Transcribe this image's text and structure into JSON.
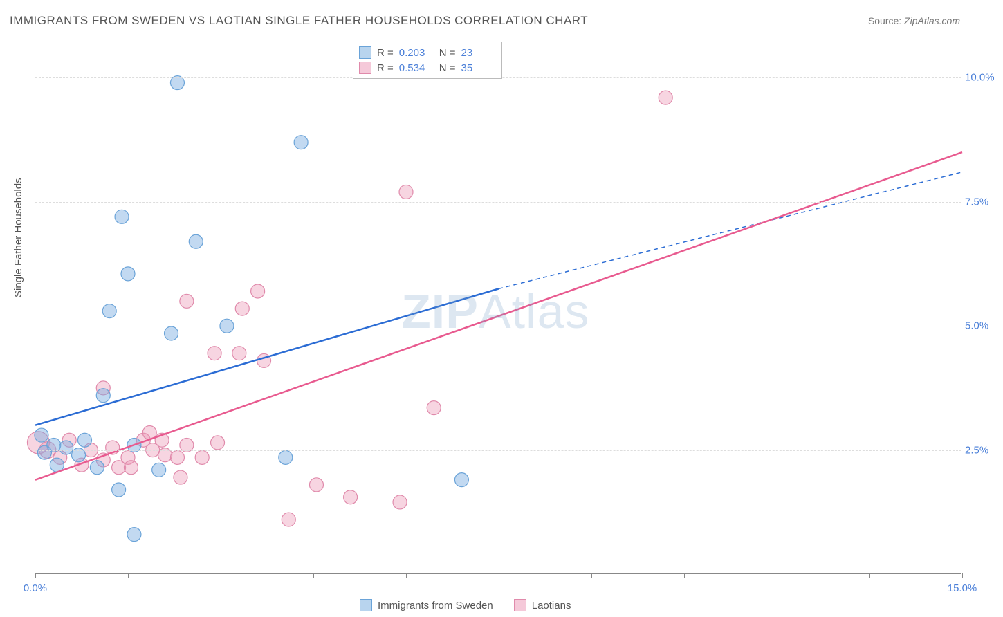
{
  "title": "IMMIGRANTS FROM SWEDEN VS LAOTIAN SINGLE FATHER HOUSEHOLDS CORRELATION CHART",
  "source_label": "Source:",
  "source_value": "ZipAtlas.com",
  "ylabel": "Single Father Households",
  "watermark_bold": "ZIP",
  "watermark_rest": "Atlas",
  "chart": {
    "type": "scatter",
    "xlim": [
      0,
      15
    ],
    "ylim": [
      0,
      10.8
    ],
    "xticks": [
      0,
      1.5,
      3,
      4.5,
      6,
      7.5,
      9,
      10.5,
      12,
      13.5,
      15
    ],
    "xtick_labels": {
      "0": "0.0%",
      "15": "15.0%"
    },
    "yticks": [
      2.5,
      5.0,
      7.5,
      10.0
    ],
    "ytick_labels": [
      "2.5%",
      "5.0%",
      "7.5%",
      "10.0%"
    ],
    "grid_color": "#dddddd",
    "axis_color": "#888888",
    "background_color": "#ffffff",
    "series": {
      "sweden": {
        "label": "Immigrants from Sweden",
        "color_fill": "rgba(120, 170, 225, 0.45)",
        "color_stroke": "#6aa3d8",
        "swatch_fill": "#b8d4ee",
        "swatch_border": "#6aa3d8",
        "r_value": "0.203",
        "n_value": "23",
        "marker_radius": 10,
        "regression": {
          "solid": {
            "x1": 0,
            "y1": 3.0,
            "x2": 7.5,
            "y2": 5.75
          },
          "dashed": {
            "x1": 7.5,
            "y1": 5.75,
            "x2": 15,
            "y2": 8.1
          },
          "stroke": "#2b6cd4",
          "width": 2.5
        },
        "points": [
          {
            "x": 2.3,
            "y": 9.9,
            "r": 10
          },
          {
            "x": 4.3,
            "y": 8.7,
            "r": 10
          },
          {
            "x": 1.4,
            "y": 7.2,
            "r": 10
          },
          {
            "x": 2.6,
            "y": 6.7,
            "r": 10
          },
          {
            "x": 1.5,
            "y": 6.05,
            "r": 10
          },
          {
            "x": 1.2,
            "y": 5.3,
            "r": 10
          },
          {
            "x": 2.2,
            "y": 4.85,
            "r": 10
          },
          {
            "x": 3.1,
            "y": 5.0,
            "r": 10
          },
          {
            "x": 1.1,
            "y": 3.6,
            "r": 10
          },
          {
            "x": 0.3,
            "y": 2.6,
            "r": 10
          },
          {
            "x": 0.15,
            "y": 2.45,
            "r": 10
          },
          {
            "x": 0.5,
            "y": 2.55,
            "r": 10
          },
          {
            "x": 0.7,
            "y": 2.4,
            "r": 10
          },
          {
            "x": 1.0,
            "y": 2.15,
            "r": 10
          },
          {
            "x": 0.8,
            "y": 2.7,
            "r": 10
          },
          {
            "x": 1.6,
            "y": 2.6,
            "r": 10
          },
          {
            "x": 2.0,
            "y": 2.1,
            "r": 10
          },
          {
            "x": 1.35,
            "y": 1.7,
            "r": 10
          },
          {
            "x": 4.05,
            "y": 2.35,
            "r": 10
          },
          {
            "x": 6.9,
            "y": 1.9,
            "r": 10
          },
          {
            "x": 1.6,
            "y": 0.8,
            "r": 10
          },
          {
            "x": 0.1,
            "y": 2.8,
            "r": 10
          },
          {
            "x": 0.35,
            "y": 2.2,
            "r": 10
          }
        ]
      },
      "laotian": {
        "label": "Laotians",
        "color_fill": "rgba(235, 150, 180, 0.4)",
        "color_stroke": "#e08aab",
        "swatch_fill": "#f5c9d9",
        "swatch_border": "#e08aab",
        "r_value": "0.534",
        "n_value": "35",
        "marker_radius": 10,
        "regression": {
          "solid": {
            "x1": 0,
            "y1": 1.9,
            "x2": 15,
            "y2": 8.5
          },
          "dashed": null,
          "stroke": "#e85a8f",
          "width": 2.5
        },
        "points": [
          {
            "x": 10.2,
            "y": 9.6,
            "r": 10
          },
          {
            "x": 6.0,
            "y": 7.7,
            "r": 10
          },
          {
            "x": 3.6,
            "y": 5.7,
            "r": 10
          },
          {
            "x": 2.45,
            "y": 5.5,
            "r": 10
          },
          {
            "x": 3.35,
            "y": 5.35,
            "r": 10
          },
          {
            "x": 2.9,
            "y": 4.45,
            "r": 10
          },
          {
            "x": 3.7,
            "y": 4.3,
            "r": 10
          },
          {
            "x": 3.3,
            "y": 4.45,
            "r": 10
          },
          {
            "x": 1.1,
            "y": 3.75,
            "r": 10
          },
          {
            "x": 6.45,
            "y": 3.35,
            "r": 10
          },
          {
            "x": 0.05,
            "y": 2.65,
            "r": 16
          },
          {
            "x": 0.2,
            "y": 2.5,
            "r": 12
          },
          {
            "x": 0.4,
            "y": 2.35,
            "r": 10
          },
          {
            "x": 0.9,
            "y": 2.5,
            "r": 10
          },
          {
            "x": 1.1,
            "y": 2.3,
            "r": 10
          },
          {
            "x": 1.25,
            "y": 2.55,
            "r": 10
          },
          {
            "x": 1.5,
            "y": 2.35,
            "r": 10
          },
          {
            "x": 1.75,
            "y": 2.7,
            "r": 10
          },
          {
            "x": 1.9,
            "y": 2.5,
            "r": 10
          },
          {
            "x": 2.05,
            "y": 2.7,
            "r": 10
          },
          {
            "x": 2.1,
            "y": 2.4,
            "r": 10
          },
          {
            "x": 2.3,
            "y": 2.35,
            "r": 10
          },
          {
            "x": 2.45,
            "y": 2.6,
            "r": 10
          },
          {
            "x": 2.7,
            "y": 2.35,
            "r": 10
          },
          {
            "x": 2.95,
            "y": 2.65,
            "r": 10
          },
          {
            "x": 1.35,
            "y": 2.15,
            "r": 10
          },
          {
            "x": 2.35,
            "y": 1.95,
            "r": 10
          },
          {
            "x": 4.55,
            "y": 1.8,
            "r": 10
          },
          {
            "x": 5.1,
            "y": 1.55,
            "r": 10
          },
          {
            "x": 5.9,
            "y": 1.45,
            "r": 10
          },
          {
            "x": 4.1,
            "y": 1.1,
            "r": 10
          },
          {
            "x": 0.55,
            "y": 2.7,
            "r": 10
          },
          {
            "x": 0.75,
            "y": 2.2,
            "r": 10
          },
          {
            "x": 1.55,
            "y": 2.15,
            "r": 10
          },
          {
            "x": 1.85,
            "y": 2.85,
            "r": 10
          }
        ]
      }
    }
  },
  "legend_labels": {
    "R": "R =",
    "N": "N ="
  }
}
